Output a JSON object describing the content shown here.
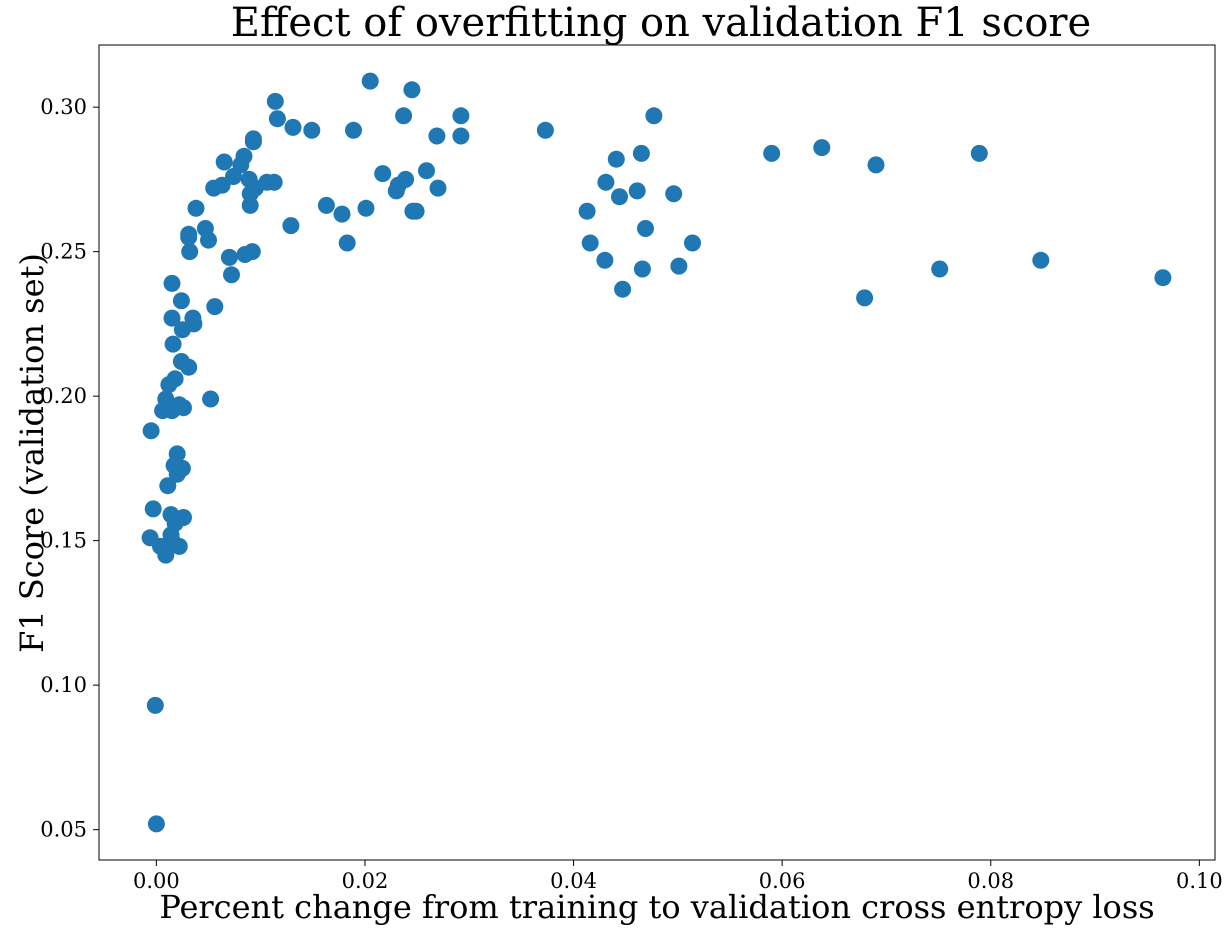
{
  "chart_data": {
    "type": "scatter",
    "title": "Effect of overfitting on validation F1 score",
    "xlabel": "Percent change from training to validation cross entropy loss",
    "ylabel": "F1 Score (validation set)",
    "xlim": [
      -0.0055,
      0.1015
    ],
    "ylim": [
      0.0395,
      0.3215
    ],
    "xticks": [
      0.0,
      0.02,
      0.04,
      0.06,
      0.08,
      0.1
    ],
    "xtick_labels": [
      "0.00",
      "0.02",
      "0.04",
      "0.06",
      "0.08",
      "0.10"
    ],
    "yticks": [
      0.05,
      0.1,
      0.15,
      0.2,
      0.25,
      0.3
    ],
    "ytick_labels": [
      "0.05",
      "0.10",
      "0.15",
      "0.20",
      "0.25",
      "0.30"
    ],
    "grid": false,
    "marker_color": "#1f77b4",
    "points": [
      [
        0.0,
        0.052
      ],
      [
        -0.0001,
        0.093
      ],
      [
        -0.0005,
        0.188
      ],
      [
        -0.0003,
        0.161
      ],
      [
        -0.0006,
        0.151
      ],
      [
        0.0004,
        0.148
      ],
      [
        0.0009,
        0.145
      ],
      [
        0.0011,
        0.169
      ],
      [
        0.0014,
        0.159
      ],
      [
        0.0014,
        0.152
      ],
      [
        0.0015,
        0.15
      ],
      [
        0.0022,
        0.148
      ],
      [
        0.0026,
        0.158
      ],
      [
        0.0018,
        0.156
      ],
      [
        0.002,
        0.173
      ],
      [
        0.0025,
        0.175
      ],
      [
        0.002,
        0.18
      ],
      [
        0.0017,
        0.176
      ],
      [
        0.0006,
        0.195
      ],
      [
        0.0009,
        0.199
      ],
      [
        0.0015,
        0.195
      ],
      [
        0.0022,
        0.197
      ],
      [
        0.0026,
        0.196
      ],
      [
        0.0012,
        0.204
      ],
      [
        0.0018,
        0.206
      ],
      [
        0.0024,
        0.212
      ],
      [
        0.0031,
        0.21
      ],
      [
        0.0016,
        0.218
      ],
      [
        0.0015,
        0.227
      ],
      [
        0.0025,
        0.223
      ],
      [
        0.0035,
        0.227
      ],
      [
        0.0036,
        0.225
      ],
      [
        0.0024,
        0.233
      ],
      [
        0.0015,
        0.239
      ],
      [
        0.0032,
        0.25
      ],
      [
        0.0031,
        0.256
      ],
      [
        0.0031,
        0.255
      ],
      [
        0.0038,
        0.265
      ],
      [
        0.0047,
        0.258
      ],
      [
        0.005,
        0.254
      ],
      [
        0.0055,
        0.272
      ],
      [
        0.0056,
        0.231
      ],
      [
        0.0052,
        0.199
      ],
      [
        0.0063,
        0.273
      ],
      [
        0.0065,
        0.281
      ],
      [
        0.007,
        0.248
      ],
      [
        0.0072,
        0.242
      ],
      [
        0.0074,
        0.276
      ],
      [
        0.0081,
        0.28
      ],
      [
        0.0084,
        0.283
      ],
      [
        0.0085,
        0.249
      ],
      [
        0.0089,
        0.275
      ],
      [
        0.009,
        0.266
      ],
      [
        0.009,
        0.27
      ],
      [
        0.0092,
        0.25
      ],
      [
        0.0093,
        0.288
      ],
      [
        0.0093,
        0.289
      ],
      [
        0.0095,
        0.272
      ],
      [
        0.0106,
        0.274
      ],
      [
        0.0113,
        0.274
      ],
      [
        0.0114,
        0.302
      ],
      [
        0.0116,
        0.296
      ],
      [
        0.0129,
        0.259
      ],
      [
        0.0131,
        0.293
      ],
      [
        0.0149,
        0.292
      ],
      [
        0.0163,
        0.266
      ],
      [
        0.0178,
        0.263
      ],
      [
        0.0183,
        0.253
      ],
      [
        0.0189,
        0.292
      ],
      [
        0.0201,
        0.265
      ],
      [
        0.0205,
        0.309
      ],
      [
        0.0217,
        0.277
      ],
      [
        0.023,
        0.271
      ],
      [
        0.0232,
        0.273
      ],
      [
        0.0237,
        0.297
      ],
      [
        0.0239,
        0.275
      ],
      [
        0.0245,
        0.306
      ],
      [
        0.0246,
        0.264
      ],
      [
        0.0249,
        0.264
      ],
      [
        0.0259,
        0.278
      ],
      [
        0.0269,
        0.29
      ],
      [
        0.027,
        0.272
      ],
      [
        0.0292,
        0.297
      ],
      [
        0.0292,
        0.29
      ],
      [
        0.0373,
        0.292
      ],
      [
        0.0413,
        0.264
      ],
      [
        0.0416,
        0.253
      ],
      [
        0.043,
        0.247
      ],
      [
        0.0431,
        0.274
      ],
      [
        0.0441,
        0.282
      ],
      [
        0.0444,
        0.269
      ],
      [
        0.0447,
        0.237
      ],
      [
        0.0461,
        0.271
      ],
      [
        0.0465,
        0.284
      ],
      [
        0.0466,
        0.244
      ],
      [
        0.0469,
        0.258
      ],
      [
        0.0477,
        0.297
      ],
      [
        0.0496,
        0.27
      ],
      [
        0.0501,
        0.245
      ],
      [
        0.0514,
        0.253
      ],
      [
        0.059,
        0.284
      ],
      [
        0.0638,
        0.286
      ],
      [
        0.0679,
        0.234
      ],
      [
        0.069,
        0.28
      ],
      [
        0.0751,
        0.244
      ],
      [
        0.0789,
        0.284
      ],
      [
        0.0848,
        0.247
      ],
      [
        0.0965,
        0.241
      ]
    ]
  }
}
